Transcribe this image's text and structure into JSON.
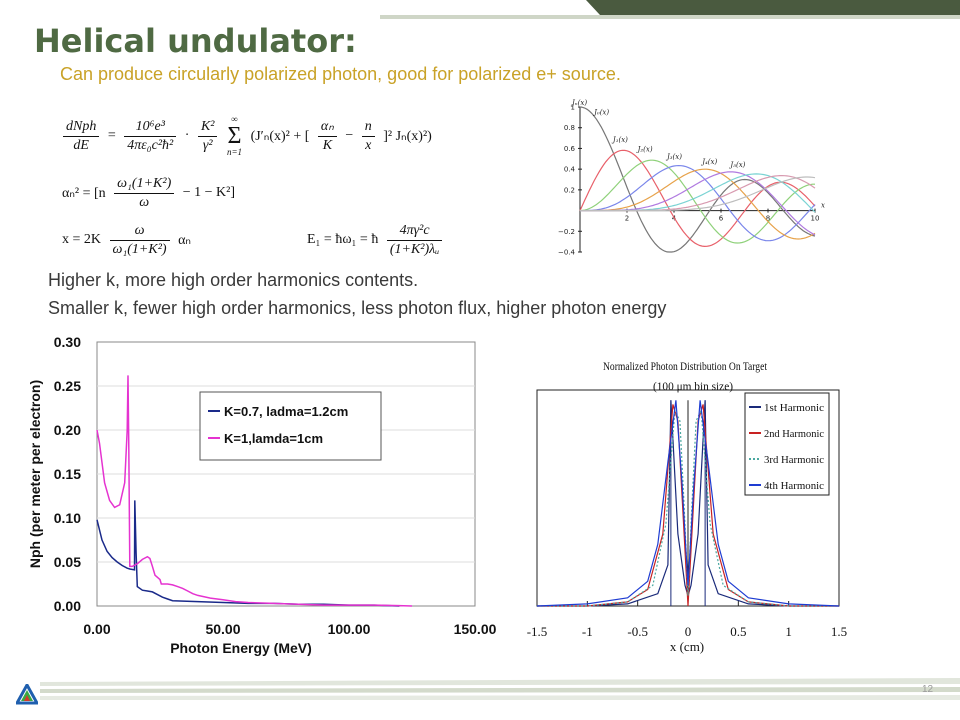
{
  "slide": {
    "title": "Helical undulator:",
    "subtitle": "Can produce circularly polarized photon, good for polarized e+ source.",
    "bullet1": "Higher k, more high order harmonics contents.",
    "bullet2": "Smaller k, fewer high order harmonics, less photon flux, higher photon energy",
    "page_number": "12"
  },
  "colors": {
    "title": "#4f6a43",
    "subtitle": "#c9a227",
    "deco_dark": "#4a5a3f",
    "deco_light": "#cfd6c7",
    "logo": [
      "#1f5fae",
      "#3aa843",
      "#d33a2c"
    ]
  },
  "equations": {
    "eq1": {
      "lhs_num": "dNph",
      "lhs_den": "dE",
      "eq": "=",
      "c_num": "10⁶e³",
      "c_den": "4πε₀c²ħ²",
      "k_num": "K²",
      "k_den": "γ²",
      "sum_top": "∞",
      "sum_sym": "Σ",
      "sum_bot": "n=1",
      "bracket_open": "(J′ₙ(x)² + [",
      "an_num": "αₙ",
      "an_den": "K",
      "minus": "−",
      "n_num": "n",
      "n_den": "x",
      "bracket_close": "]² Jₙ(x)²)"
    },
    "eq2": {
      "lhs": "αₙ² = [n",
      "f_num": "ω₁(1+K²)",
      "f_den": "ω",
      "rhs": "− 1 − K²]"
    },
    "eq3": {
      "lhs": "x = 2K",
      "f_num": "ω",
      "f_den": "ω₁(1+K²)",
      "rhs": "αₙ"
    },
    "eq4": {
      "lhs": "E₁ = ħω₁ = ħ",
      "f_num": "4πγ²c",
      "f_den": "(1+K²)λᵤ"
    }
  },
  "chart_data": [
    {
      "type": "line",
      "title": "",
      "ylabel": "Jₙ(x)",
      "xlim": [
        0,
        10
      ],
      "ylim": [
        -0.4,
        1
      ],
      "xticks": [
        2,
        4,
        6,
        8,
        10
      ],
      "xtick_labels": [
        "2",
        "4",
        "6",
        "8",
        "10"
      ],
      "yticks": [
        -0.4,
        -0.2,
        0.2,
        0.4,
        0.6,
        0.8,
        1
      ],
      "ytick_labels": [
        "−0.4",
        "−0.2",
        "0.2",
        "0.4",
        "0.6",
        "0.8",
        "1"
      ],
      "xlabel": "x",
      "annotations": [
        "J₀(x)",
        "J₁(x)",
        "J₂(x)",
        "J₃(x)",
        "J₄(x)",
        "J₅(x)"
      ],
      "series": [
        {
          "order": 0,
          "color": "#777777"
        },
        {
          "order": 1,
          "color": "#e8606a"
        },
        {
          "order": 2,
          "color": "#8fd17a"
        },
        {
          "order": 3,
          "color": "#7a86ea"
        },
        {
          "order": 4,
          "color": "#e7a24a"
        },
        {
          "order": 5,
          "color": "#b07ae0"
        },
        {
          "order": 6,
          "color": "#7ad3d3"
        },
        {
          "order": 7,
          "color": "#d89ab0"
        },
        {
          "order": 8,
          "color": "#bdbdbd"
        }
      ]
    },
    {
      "type": "line",
      "title": "",
      "xlabel": "Photon Energy (MeV)",
      "ylabel": "Nph (per meter per electron)",
      "xlim": [
        0,
        150
      ],
      "ylim": [
        0,
        0.3
      ],
      "xtick_labels": [
        "0.00",
        "50.00",
        "100.00",
        "150.00"
      ],
      "ytick_labels": [
        "0.00",
        "0.05",
        "0.10",
        "0.15",
        "0.20",
        "0.25",
        "0.30"
      ],
      "grid": true,
      "legend_position": "top-right",
      "series": [
        {
          "name": "K=0.7, ladma=1.2cm",
          "color": "#1a2a8a",
          "x": [
            0,
            2,
            4,
            6,
            8,
            10,
            12,
            13,
            14.9,
            15,
            15.5,
            16,
            18,
            20,
            22,
            24,
            26,
            28,
            30,
            40,
            50,
            60,
            70,
            80,
            90,
            100,
            110,
            120
          ],
          "y": [
            0.098,
            0.075,
            0.062,
            0.055,
            0.05,
            0.046,
            0.043,
            0.042,
            0.041,
            0.12,
            0.06,
            0.022,
            0.018,
            0.017,
            0.016,
            0.013,
            0.01,
            0.008,
            0.006,
            0.005,
            0.004,
            0.003,
            0.003,
            0.002,
            0.002,
            0.001,
            0.001,
            0.0
          ]
        },
        {
          "name": "K=1,lamda=1cm",
          "color": "#e533d0",
          "x": [
            0,
            1,
            3,
            5,
            7,
            9,
            11,
            12,
            12.3,
            12.6,
            13,
            14,
            16,
            18,
            20,
            21,
            22,
            23,
            25,
            25.5,
            26,
            28,
            30,
            32,
            34,
            36,
            38,
            40,
            45,
            50,
            55,
            60,
            70,
            80,
            90,
            100,
            110,
            120,
            125
          ],
          "y": [
            0.2,
            0.185,
            0.14,
            0.12,
            0.112,
            0.115,
            0.14,
            0.2,
            0.262,
            0.18,
            0.045,
            0.045,
            0.048,
            0.053,
            0.056,
            0.054,
            0.045,
            0.035,
            0.03,
            0.025,
            0.025,
            0.025,
            0.024,
            0.022,
            0.02,
            0.017,
            0.014,
            0.012,
            0.009,
            0.007,
            0.005,
            0.004,
            0.003,
            0.002,
            0.001,
            0.001,
            0.001,
            0.0005,
            0.0
          ]
        }
      ]
    },
    {
      "type": "line",
      "title": "Normalized Photon Distribution On Target",
      "subtitle": "(100 μm bin size)",
      "xlabel": "x (cm)",
      "ylabel": "",
      "xlim": [
        -1.5,
        1.5
      ],
      "ylim": [
        0,
        1.05
      ],
      "xtick_labels": [
        "-1.5",
        "-1",
        "-0.5",
        "0",
        "0.5",
        "1",
        "1.5"
      ],
      "legend_position": "top-right",
      "series": [
        {
          "name": "1st Harmonic",
          "color": "#1a2a7a",
          "x": [
            -1.5,
            -1.0,
            -0.6,
            -0.3,
            -0.2,
            -0.17,
            -0.1,
            -0.03,
            0,
            0.03,
            0.1,
            0.17,
            0.2,
            0.3,
            0.6,
            1.0,
            1.5
          ],
          "y": [
            0,
            0.0,
            0.01,
            0.06,
            0.2,
            1.0,
            0.35,
            0.1,
            0.05,
            0.1,
            0.35,
            1.0,
            0.2,
            0.06,
            0.01,
            0.0,
            0
          ]
        },
        {
          "name": "2nd Harmonic",
          "color": "#c82222",
          "x": [
            -1.5,
            -1.0,
            -0.6,
            -0.4,
            -0.25,
            -0.15,
            -0.1,
            -0.05,
            0,
            0.05,
            0.1,
            0.15,
            0.25,
            0.4,
            0.6,
            1.0,
            1.5
          ],
          "y": [
            0,
            0.0,
            0.02,
            0.08,
            0.35,
            0.98,
            0.9,
            0.45,
            0.0,
            0.45,
            0.9,
            0.98,
            0.35,
            0.08,
            0.02,
            0.0,
            0
          ]
        },
        {
          "name": "3rd Harmonic",
          "color": "#4aa8a0",
          "x": [
            -1.5,
            -1.0,
            -0.6,
            -0.35,
            -0.22,
            -0.13,
            -0.08,
            -0.04,
            0,
            0.04,
            0.08,
            0.13,
            0.22,
            0.35,
            0.6,
            1.0,
            1.5
          ],
          "y": [
            0,
            0.0,
            0.02,
            0.1,
            0.4,
            0.95,
            0.9,
            0.5,
            0.05,
            0.5,
            0.9,
            0.95,
            0.4,
            0.1,
            0.02,
            0.0,
            0
          ]
        },
        {
          "name": "4th Harmonic",
          "color": "#1e3cd2",
          "x": [
            -1.5,
            -1.0,
            -0.6,
            -0.4,
            -0.3,
            -0.2,
            -0.12,
            -0.06,
            0,
            0.06,
            0.12,
            0.2,
            0.3,
            0.4,
            0.6,
            1.0,
            1.5
          ],
          "y": [
            0,
            0.01,
            0.04,
            0.12,
            0.3,
            0.7,
            1.0,
            0.6,
            0.1,
            0.6,
            1.0,
            0.7,
            0.3,
            0.12,
            0.04,
            0.01,
            0
          ]
        }
      ]
    }
  ]
}
